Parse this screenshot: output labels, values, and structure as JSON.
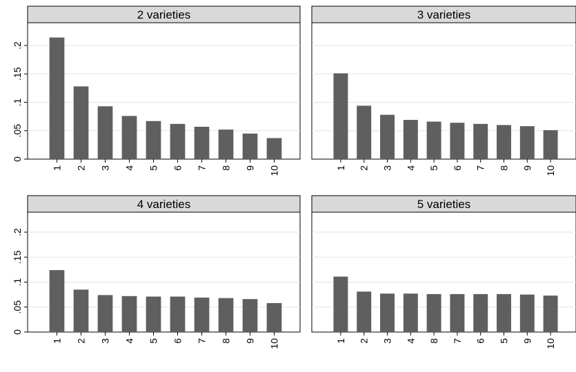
{
  "chart_data": [
    {
      "type": "bar",
      "title": "2 varieties",
      "categories": [
        "1",
        "2",
        "3",
        "4",
        "5",
        "6",
        "7",
        "8",
        "9",
        "10"
      ],
      "values": [
        0.214,
        0.128,
        0.093,
        0.076,
        0.067,
        0.062,
        0.057,
        0.052,
        0.045,
        0.037
      ],
      "yticks": [
        0,
        0.05,
        0.1,
        0.15,
        0.2
      ],
      "ytick_labels": [
        "0",
        ".05",
        ".1",
        ".15",
        ".2"
      ],
      "ylim": [
        0,
        0.24
      ],
      "xlabel": "",
      "ylabel": "",
      "grid": true,
      "bar_color": "#5f5f5f"
    },
    {
      "type": "bar",
      "title": "3 varieties",
      "categories": [
        "1",
        "2",
        "3",
        "4",
        "5",
        "6",
        "7",
        "8",
        "9",
        "10"
      ],
      "values": [
        0.151,
        0.094,
        0.078,
        0.069,
        0.066,
        0.064,
        0.062,
        0.06,
        0.058,
        0.051
      ],
      "yticks": [
        0,
        0.05,
        0.1,
        0.15,
        0.2
      ],
      "ytick_labels": [
        "0",
        ".05",
        ".1",
        ".15",
        ".2"
      ],
      "ylim": [
        0,
        0.24
      ],
      "xlabel": "",
      "ylabel": "",
      "grid": true,
      "bar_color": "#5f5f5f"
    },
    {
      "type": "bar",
      "title": "4 varieties",
      "categories": [
        "1",
        "2",
        "3",
        "4",
        "5",
        "6",
        "7",
        "8",
        "9",
        "10"
      ],
      "values": [
        0.124,
        0.085,
        0.074,
        0.072,
        0.071,
        0.071,
        0.069,
        0.068,
        0.066,
        0.058
      ],
      "yticks": [
        0,
        0.05,
        0.1,
        0.15,
        0.2
      ],
      "ytick_labels": [
        "0",
        ".05",
        ".1",
        ".15",
        ".2"
      ],
      "ylim": [
        0,
        0.24
      ],
      "xlabel": "",
      "ylabel": "",
      "grid": true,
      "bar_color": "#5f5f5f"
    },
    {
      "type": "bar",
      "title": "5 varieties",
      "categories": [
        "1",
        "2",
        "3",
        "4",
        "8",
        "7",
        "6",
        "5",
        "9",
        "10"
      ],
      "values": [
        0.111,
        0.081,
        0.077,
        0.077,
        0.076,
        0.076,
        0.076,
        0.076,
        0.075,
        0.073
      ],
      "yticks": [
        0,
        0.05,
        0.1,
        0.15,
        0.2
      ],
      "ytick_labels": [
        "0",
        ".05",
        ".1",
        ".15",
        ".2"
      ],
      "ylim": [
        0,
        0.24
      ],
      "xlabel": "",
      "ylabel": "",
      "grid": true,
      "bar_color": "#5f5f5f"
    }
  ]
}
